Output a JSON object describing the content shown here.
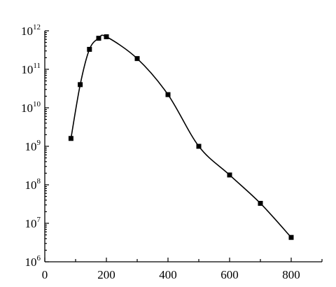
{
  "chart_data": {
    "type": "scatter",
    "title": "",
    "xlabel": "",
    "ylabel": "",
    "y_scale": "log",
    "xlim": [
      0,
      900
    ],
    "ylim": [
      1000000,
      1000000000000
    ],
    "x_ticks": [
      0,
      200,
      400,
      600,
      800
    ],
    "x_tick_labels": [
      "0",
      "200",
      "400",
      "600",
      "800"
    ],
    "y_ticks": [
      {
        "base": "10",
        "exp": "6"
      },
      {
        "base": "10",
        "exp": "7"
      },
      {
        "base": "10",
        "exp": "8"
      },
      {
        "base": "10",
        "exp": "9"
      },
      {
        "base": "10",
        "exp": "10"
      },
      {
        "base": "10",
        "exp": "11"
      },
      {
        "base": "10",
        "exp": "12"
      }
    ],
    "grid": false,
    "series": [
      {
        "marker": "square",
        "smooth_line": true,
        "x": [
          85,
          115,
          145,
          175,
          200,
          300,
          400,
          500,
          600,
          700,
          800
        ],
        "y": [
          1600000000,
          40000000000,
          330000000000,
          640000000000,
          700000000000,
          190000000000,
          22000000000,
          1000000000,
          180000000,
          33000000,
          4300000
        ]
      }
    ]
  }
}
